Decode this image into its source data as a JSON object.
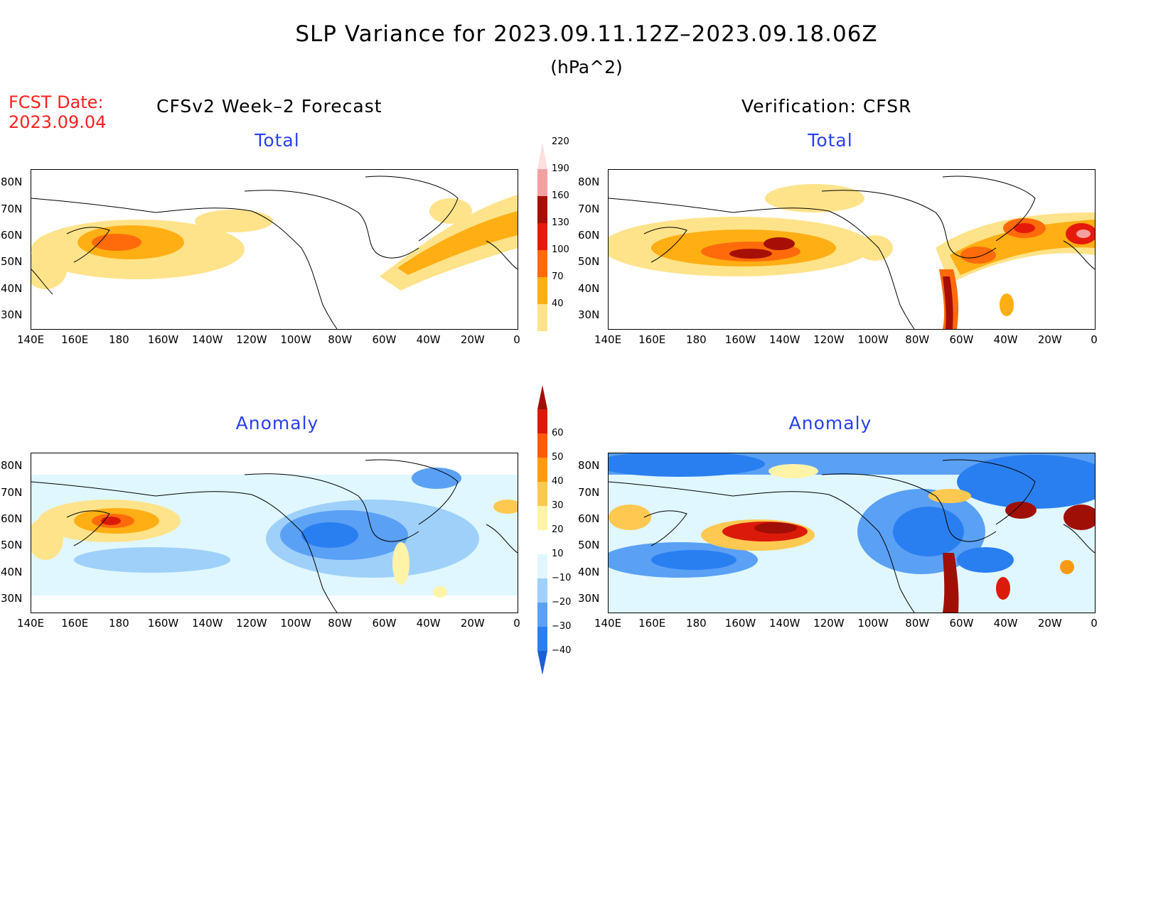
{
  "title": "SLP Variance for 2023.09.11.12Z–2023.09.18.06Z",
  "units": "(hPa^2)",
  "fcst_date": {
    "label": "FCST Date:",
    "value": "2023.09.04"
  },
  "columns": {
    "left": "CFSv2 Week–2 Forecast",
    "right": "Verification: CFSR"
  },
  "panels": {
    "top_left": {
      "title": "Total"
    },
    "top_right": {
      "title": "Total"
    },
    "bottom_left": {
      "title": "Anomaly"
    },
    "bottom_right": {
      "title": "Anomaly"
    }
  },
  "axes": {
    "lat_labels": [
      "80N",
      "70N",
      "60N",
      "50N",
      "40N",
      "30N"
    ],
    "lon_labels": [
      "140E",
      "160E",
      "180",
      "160W",
      "140W",
      "120W",
      "100W",
      "80W",
      "60W",
      "40W",
      "20W",
      "0"
    ]
  },
  "colorbars": {
    "total": {
      "levels": [
        "40",
        "70",
        "100",
        "130",
        "160",
        "190",
        "220"
      ],
      "colors": [
        "#ffe38a",
        "#ffae14",
        "#ff6a0a",
        "#e61a0a",
        "#a50f05",
        "#f4a0a0",
        "#fbe0e0"
      ]
    },
    "anomaly": {
      "levels": [
        "−40",
        "−30",
        "−20",
        "−10",
        "10",
        "20",
        "30",
        "40",
        "50",
        "60"
      ],
      "colors": [
        "#1a5fd6",
        "#2a7ff0",
        "#5aa0f5",
        "#9ed0fa",
        "#e0f7ff",
        "#ffffff",
        "#fff3a8",
        "#ffc850",
        "#ff9a10",
        "#ff5a08",
        "#dc1a0a",
        "#a00f05"
      ]
    }
  }
}
